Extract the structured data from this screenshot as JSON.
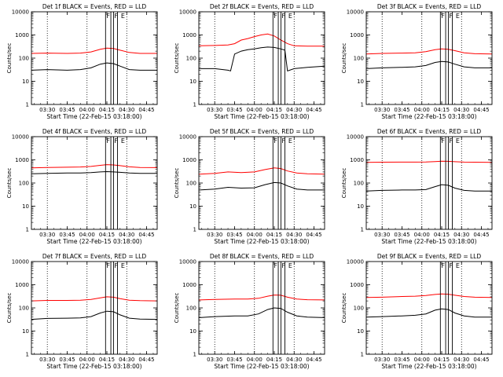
{
  "figure": {
    "tick_labels_y": [
      "1",
      "10",
      "100",
      "1000",
      "10000"
    ],
    "ylabel": "Counts/sec",
    "xlabel": "Start Time (22-Feb-15 03:18:00)",
    "tick_labels_x": [
      "03:30",
      "03:45",
      "04:00",
      "04:15",
      "04:30",
      "04:45"
    ],
    "marker_labels": [
      "F",
      "F",
      "E"
    ],
    "colors": {
      "events": "#000000",
      "lld": "#ff0000",
      "axes": "#000000"
    }
  },
  "chart_data": [
    {
      "type": "line",
      "title": "Det 1f BLACK = Events, RED = LLD",
      "yscale": "log",
      "ylim": [
        1,
        10000
      ],
      "xlim": [
        "03:18",
        "04:53"
      ],
      "series": [
        {
          "color": "#ff0000",
          "x": [
            "03:18",
            "03:30",
            "03:45",
            "03:55",
            "04:03",
            "04:10",
            "04:15",
            "04:20",
            "04:25",
            "04:32",
            "04:40",
            "04:53"
          ],
          "y": [
            160,
            165,
            160,
            165,
            185,
            240,
            270,
            260,
            220,
            175,
            160,
            160
          ]
        },
        {
          "color": "#000000",
          "x": [
            "03:18",
            "03:30",
            "03:45",
            "03:55",
            "04:03",
            "04:10",
            "04:15",
            "04:20",
            "04:25",
            "04:32",
            "04:40",
            "04:53"
          ],
          "y": [
            30,
            32,
            30,
            32,
            38,
            55,
            62,
            58,
            45,
            32,
            30,
            30
          ]
        }
      ]
    },
    {
      "type": "line",
      "title": "Det 2f BLACK = Events, RED = LLD",
      "yscale": "log",
      "ylim": [
        1,
        10000
      ],
      "xlim": [
        "03:18",
        "04:53"
      ],
      "series": [
        {
          "color": "#ff0000",
          "x": [
            "03:18",
            "03:30",
            "03:40",
            "03:45",
            "03:50",
            "03:55",
            "04:00",
            "04:05",
            "04:10",
            "04:15",
            "04:20",
            "04:25",
            "04:30",
            "04:40",
            "04:53"
          ],
          "y": [
            340,
            350,
            370,
            420,
            600,
            700,
            850,
            1000,
            1100,
            900,
            600,
            420,
            340,
            330,
            330
          ]
        },
        {
          "color": "#000000",
          "x": [
            "03:18",
            "03:30",
            "03:40",
            "03:42",
            "03:45",
            "03:50",
            "03:55",
            "04:00",
            "04:05",
            "04:10",
            "04:15",
            "04:20",
            "04:23",
            "04:25",
            "04:30",
            "04:40",
            "04:53"
          ],
          "y": [
            35,
            35,
            30,
            28,
            150,
            200,
            230,
            250,
            280,
            300,
            290,
            250,
            220,
            28,
            35,
            40,
            45
          ]
        }
      ]
    },
    {
      "type": "line",
      "title": "Det 3f BLACK = Events, RED = LLD",
      "yscale": "log",
      "ylim": [
        1,
        10000
      ],
      "xlim": [
        "03:18",
        "04:53"
      ],
      "series": [
        {
          "color": "#ff0000",
          "x": [
            "03:18",
            "03:30",
            "03:45",
            "03:55",
            "04:03",
            "04:10",
            "04:15",
            "04:20",
            "04:25",
            "04:32",
            "04:40",
            "04:53"
          ],
          "y": [
            150,
            160,
            165,
            170,
            190,
            230,
            250,
            240,
            210,
            170,
            155,
            150
          ]
        },
        {
          "color": "#000000",
          "x": [
            "03:18",
            "03:30",
            "03:45",
            "03:55",
            "04:03",
            "04:10",
            "04:15",
            "04:20",
            "04:25",
            "04:32",
            "04:40",
            "04:53"
          ],
          "y": [
            35,
            38,
            40,
            42,
            48,
            65,
            72,
            68,
            55,
            42,
            38,
            38
          ]
        }
      ]
    },
    {
      "type": "line",
      "title": "Det 4f BLACK = Events, RED = LLD",
      "yscale": "log",
      "ylim": [
        1,
        10000
      ],
      "xlim": [
        "03:18",
        "04:53"
      ],
      "series": [
        {
          "color": "#ff0000",
          "x": [
            "03:18",
            "03:30",
            "03:45",
            "03:55",
            "04:03",
            "04:10",
            "04:15",
            "04:20",
            "04:25",
            "04:32",
            "04:40",
            "04:53"
          ],
          "y": [
            450,
            470,
            480,
            490,
            520,
            580,
            620,
            600,
            560,
            500,
            470,
            460
          ]
        },
        {
          "color": "#000000",
          "x": [
            "03:18",
            "03:30",
            "03:45",
            "03:55",
            "04:03",
            "04:10",
            "04:15",
            "04:20",
            "04:25",
            "04:32",
            "04:40",
            "04:53"
          ],
          "y": [
            250,
            260,
            270,
            270,
            280,
            300,
            310,
            300,
            290,
            270,
            260,
            260
          ]
        }
      ]
    },
    {
      "type": "line",
      "title": "Det 5f BLACK = Events, RED = LLD",
      "yscale": "log",
      "ylim": [
        1,
        10000
      ],
      "xlim": [
        "03:18",
        "04:53"
      ],
      "series": [
        {
          "color": "#ff0000",
          "x": [
            "03:18",
            "03:30",
            "03:40",
            "03:50",
            "04:00",
            "04:08",
            "04:15",
            "04:20",
            "04:25",
            "04:32",
            "04:40",
            "04:53"
          ],
          "y": [
            240,
            260,
            300,
            280,
            300,
            380,
            450,
            420,
            330,
            270,
            250,
            240
          ]
        },
        {
          "color": "#000000",
          "x": [
            "03:18",
            "03:30",
            "03:40",
            "03:50",
            "04:00",
            "04:08",
            "04:15",
            "04:20",
            "04:25",
            "04:32",
            "04:40",
            "04:53"
          ],
          "y": [
            50,
            55,
            65,
            60,
            62,
            85,
            105,
            100,
            75,
            55,
            50,
            50
          ]
        }
      ]
    },
    {
      "type": "line",
      "title": "Det 6f BLACK = Events, RED = LLD",
      "yscale": "log",
      "ylim": [
        1,
        10000
      ],
      "xlim": [
        "03:18",
        "04:53"
      ],
      "series": [
        {
          "color": "#ff0000",
          "x": [
            "03:18",
            "03:30",
            "03:45",
            "03:55",
            "04:03",
            "04:10",
            "04:15",
            "04:20",
            "04:25",
            "04:32",
            "04:40",
            "04:53"
          ],
          "y": [
            780,
            790,
            800,
            800,
            810,
            840,
            870,
            860,
            830,
            800,
            790,
            780
          ]
        },
        {
          "color": "#000000",
          "x": [
            "03:18",
            "03:30",
            "03:45",
            "03:55",
            "04:03",
            "04:10",
            "04:15",
            "04:20",
            "04:25",
            "04:32",
            "04:40",
            "04:53"
          ],
          "y": [
            45,
            48,
            50,
            50,
            52,
            70,
            85,
            80,
            60,
            48,
            45,
            45
          ]
        }
      ]
    },
    {
      "type": "line",
      "title": "Det 7f BLACK = Events, RED = LLD",
      "yscale": "log",
      "ylim": [
        1,
        10000
      ],
      "xlim": [
        "03:18",
        "04:53"
      ],
      "series": [
        {
          "color": "#ff0000",
          "x": [
            "03:18",
            "03:30",
            "03:45",
            "03:55",
            "04:03",
            "04:10",
            "04:15",
            "04:20",
            "04:25",
            "04:32",
            "04:40",
            "04:53"
          ],
          "y": [
            200,
            210,
            210,
            215,
            230,
            270,
            300,
            290,
            250,
            215,
            205,
            200
          ]
        },
        {
          "color": "#000000",
          "x": [
            "03:18",
            "03:30",
            "03:45",
            "03:55",
            "04:03",
            "04:10",
            "04:15",
            "04:20",
            "04:25",
            "04:32",
            "04:40",
            "04:53"
          ],
          "y": [
            32,
            35,
            36,
            37,
            42,
            60,
            72,
            68,
            50,
            36,
            33,
            32
          ]
        }
      ]
    },
    {
      "type": "line",
      "title": "Det 8f BLACK = Events, RED = LLD",
      "yscale": "log",
      "ylim": [
        1,
        10000
      ],
      "xlim": [
        "03:18",
        "04:53"
      ],
      "series": [
        {
          "color": "#ff0000",
          "x": [
            "03:18",
            "03:30",
            "03:45",
            "03:55",
            "04:03",
            "04:10",
            "04:15",
            "04:20",
            "04:25",
            "04:32",
            "04:40",
            "04:53"
          ],
          "y": [
            220,
            230,
            240,
            240,
            260,
            320,
            360,
            350,
            290,
            240,
            225,
            220
          ]
        },
        {
          "color": "#000000",
          "x": [
            "03:18",
            "03:30",
            "03:45",
            "03:55",
            "04:03",
            "04:10",
            "04:15",
            "04:20",
            "04:25",
            "04:32",
            "04:40",
            "04:53"
          ],
          "y": [
            38,
            42,
            45,
            45,
            55,
            85,
            100,
            95,
            65,
            45,
            40,
            38
          ]
        }
      ]
    },
    {
      "type": "line",
      "title": "Det 9f BLACK = Events, RED = LLD",
      "yscale": "log",
      "ylim": [
        1,
        10000
      ],
      "xlim": [
        "03:18",
        "04:53"
      ],
      "series": [
        {
          "color": "#ff0000",
          "x": [
            "03:18",
            "03:30",
            "03:45",
            "03:55",
            "04:03",
            "04:10",
            "04:15",
            "04:20",
            "04:25",
            "04:32",
            "04:40",
            "04:53"
          ],
          "y": [
            280,
            290,
            310,
            320,
            340,
            380,
            400,
            390,
            350,
            310,
            290,
            280
          ]
        },
        {
          "color": "#000000",
          "x": [
            "03:18",
            "03:30",
            "03:45",
            "03:55",
            "04:03",
            "04:10",
            "04:15",
            "04:20",
            "04:25",
            "04:32",
            "04:40",
            "04:53"
          ],
          "y": [
            40,
            42,
            45,
            48,
            55,
            80,
            90,
            85,
            60,
            45,
            40,
            40
          ]
        }
      ]
    }
  ]
}
